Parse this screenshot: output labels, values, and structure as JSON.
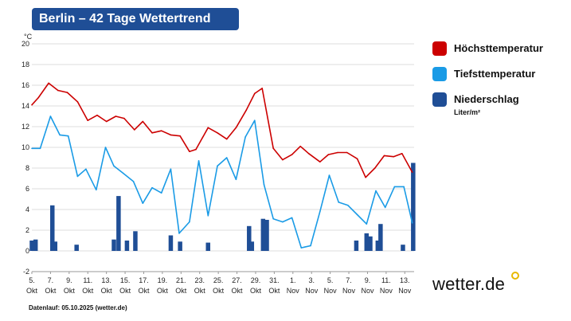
{
  "title": "Berlin – 42 Tage Wettertrend",
  "unit_label": "°C",
  "legend": {
    "high": "Höchsttemperatur",
    "low": "Tiefsttemperatur",
    "precip": "Niederschlag",
    "precip_unit": "Liter/m²"
  },
  "colors": {
    "high": "#cc0000",
    "low": "#1a9be6",
    "precip": "#1f4e96",
    "title_bg": "#1f4e96",
    "grid": "#dddddd"
  },
  "brand": "wetter.de",
  "footer": "Datenlauf: 05.10.2025 (wetter.de)",
  "chart_data": {
    "type": "line",
    "ylim": [
      -2,
      20
    ],
    "y_ticks": [
      -2,
      0,
      2,
      4,
      6,
      8,
      10,
      12,
      14,
      16,
      18,
      20
    ],
    "grid": true,
    "legend_position": "right",
    "x_tick_labels": [
      {
        "day": 0,
        "top": "5.",
        "bottom": "Okt"
      },
      {
        "day": 2,
        "top": "7.",
        "bottom": "Okt"
      },
      {
        "day": 4,
        "top": "9.",
        "bottom": "Okt"
      },
      {
        "day": 6,
        "top": "11.",
        "bottom": "Okt"
      },
      {
        "day": 8,
        "top": "13.",
        "bottom": "Okt"
      },
      {
        "day": 10,
        "top": "15.",
        "bottom": "Okt"
      },
      {
        "day": 12,
        "top": "17.",
        "bottom": "Okt"
      },
      {
        "day": 14,
        "top": "19.",
        "bottom": "Okt"
      },
      {
        "day": 16,
        "top": "21.",
        "bottom": "Okt"
      },
      {
        "day": 18,
        "top": "23.",
        "bottom": "Okt"
      },
      {
        "day": 20,
        "top": "25.",
        "bottom": "Okt"
      },
      {
        "day": 22,
        "top": "27.",
        "bottom": "Okt"
      },
      {
        "day": 24,
        "top": "29.",
        "bottom": "Okt"
      },
      {
        "day": 26,
        "top": "31.",
        "bottom": "Okt"
      },
      {
        "day": 28,
        "top": "1.",
        "bottom": "Nov"
      },
      {
        "day": 30,
        "top": "3.",
        "bottom": "Nov"
      },
      {
        "day": 32,
        "top": "5.",
        "bottom": "Nov"
      },
      {
        "day": 34,
        "top": "7.",
        "bottom": "Nov"
      },
      {
        "day": 36,
        "top": "9.",
        "bottom": "Nov"
      },
      {
        "day": 38,
        "top": "11.",
        "bottom": "Nov"
      },
      {
        "day": 40,
        "top": "13.",
        "bottom": "Nov"
      }
    ],
    "series": [
      {
        "name": "Höchsttemperatur",
        "x": [
          0,
          0.7,
          1.8,
          2.8,
          3.8,
          4.9,
          6,
          7,
          8,
          9,
          9.9,
          11,
          11.9,
          12.9,
          13.9,
          14.9,
          15.9,
          16.9,
          17.6,
          18.9,
          19.9,
          20.9,
          21.9,
          23,
          23.9,
          24.7,
          25.9,
          26.9,
          27.9,
          28.8,
          29.7,
          30.9,
          31.8,
          32.8,
          33.8,
          34.9,
          35.8,
          36.8,
          37.8,
          38.8,
          39.7,
          40.8
        ],
        "values": [
          14.1,
          14.8,
          16.2,
          15.5,
          15.3,
          14.4,
          12.6,
          13.1,
          12.5,
          13.0,
          12.8,
          11.7,
          12.5,
          11.4,
          11.6,
          11.2,
          11.1,
          9.6,
          9.8,
          11.9,
          11.4,
          10.8,
          11.9,
          13.6,
          15.2,
          15.7,
          9.9,
          8.8,
          9.3,
          10.1,
          9.4,
          8.6,
          9.3,
          9.5,
          9.5,
          8.9,
          7.1,
          8.0,
          9.2,
          9.1,
          9.4,
          7.6
        ]
      },
      {
        "name": "Tiefsttemperatur",
        "x": [
          0,
          0.9,
          2,
          3,
          3.9,
          4.9,
          5.8,
          6.9,
          7.9,
          8.8,
          9.8,
          10.9,
          11.9,
          12.9,
          13.9,
          14.9,
          15.8,
          16.9,
          17.9,
          18.9,
          19.9,
          20.9,
          21.9,
          22.9,
          23.9,
          24.9,
          25.9,
          26.9,
          27.9,
          28.9,
          29.9,
          30.9,
          31.9,
          32.9,
          33.9,
          34.9,
          35.9,
          36.9,
          37.9,
          38.9,
          39.9,
          40.8
        ],
        "values": [
          9.9,
          9.9,
          13.0,
          11.2,
          11.1,
          7.2,
          7.9,
          5.9,
          10.0,
          8.2,
          7.5,
          6.7,
          4.6,
          6.1,
          5.6,
          7.9,
          1.7,
          2.8,
          8.7,
          3.4,
          8.2,
          9.0,
          6.9,
          11.0,
          12.6,
          6.4,
          3.1,
          2.8,
          3.2,
          0.3,
          0.5,
          3.8,
          7.3,
          4.7,
          4.4,
          3.5,
          2.6,
          5.8,
          4.2,
          6.2,
          6.2,
          2.7
        ]
      },
      {
        "name": "Niederschlag",
        "type": "bar",
        "x": [
          0,
          0.4,
          2.2,
          2.5,
          4.8,
          8.8,
          9.3,
          10.2,
          11.1,
          14.9,
          15.9,
          18.9,
          23.3,
          23.6,
          24.8,
          25.2,
          34.8,
          35.9,
          36.3,
          37.1,
          37.4,
          39.8,
          40.9
        ],
        "values": [
          1.0,
          1.1,
          4.4,
          0.9,
          0.6,
          1.1,
          5.3,
          1.0,
          1.9,
          1.5,
          0.9,
          0.8,
          2.4,
          0.9,
          3.1,
          3.0,
          1.0,
          1.7,
          1.4,
          1.0,
          2.6,
          0.6,
          8.5
        ]
      }
    ]
  }
}
